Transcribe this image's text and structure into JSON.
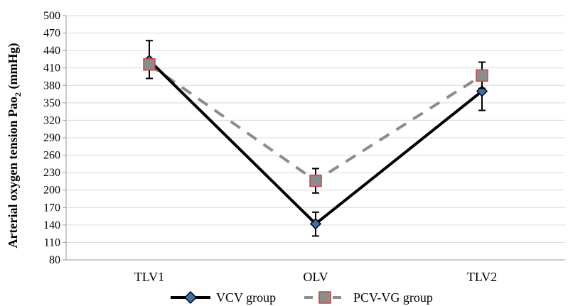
{
  "chart_data": {
    "type": "line",
    "title": "",
    "xlabel": "",
    "ylabel": {
      "main": "Arterial oxygen tension Pao",
      "sub": "2",
      "unit": " (mmHg)"
    },
    "categories": [
      "TLV1",
      "OLV",
      "TLV2"
    ],
    "ylim": [
      80,
      500
    ],
    "yticks": [
      80,
      110,
      140,
      170,
      200,
      230,
      260,
      290,
      320,
      350,
      380,
      410,
      440,
      470,
      500
    ],
    "grid": true,
    "legend_position": "bottom",
    "series": [
      {
        "name": "VCV group",
        "values": [
          423,
          142,
          370
        ],
        "error_low": [
          392,
          121,
          337
        ],
        "error_high": [
          457,
          162,
          403
        ],
        "color": "#000000",
        "marker": "diamond",
        "marker_fill": "#3a6fb0",
        "line_style": "solid"
      },
      {
        "name": "PCV-VG group",
        "values": [
          416,
          216,
          397
        ],
        "error_low": [
          408,
          195,
          375
        ],
        "error_high": [
          425,
          237,
          420
        ],
        "color": "#8c8c8c",
        "marker": "square",
        "marker_fill": "#8c8c8c",
        "marker_edge": "#d04040",
        "line_style": "dashed"
      }
    ]
  }
}
